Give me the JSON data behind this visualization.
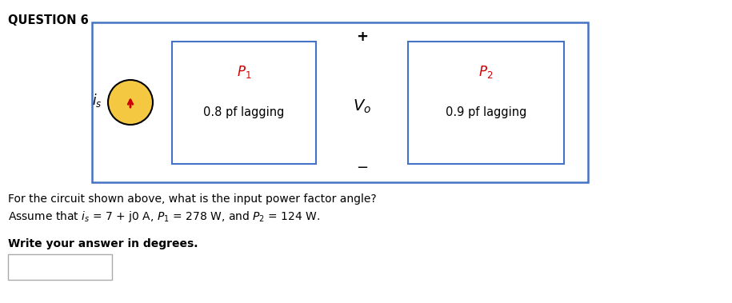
{
  "title": "QUESTION 6",
  "question_text1": "For the circuit shown above, what is the input power factor angle?",
  "question_text2": "Assume that $i_s$ = 7 + j0 A, $P_1$ = 278 W, and $P_2$ = 124 W.",
  "instruction": "Write your answer in degrees.",
  "box_edge_color": "#4472C4",
  "box_fill_color": "#FFFFFF",
  "source_fill_color": "#F5C842",
  "source_edge_color": "#000000",
  "arrow_color": "#CC0000",
  "label_P_color": "#CC0000",
  "text_fontsize": 10,
  "title_fontsize": 10.5,
  "circuit_fontsize": 12,
  "circuit_small_fontsize": 10.5
}
